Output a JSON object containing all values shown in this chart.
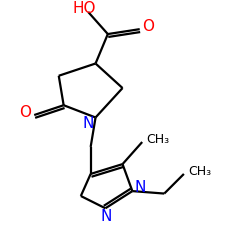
{
  "background_color": "#ffffff",
  "bond_color": "#000000",
  "n_color": "#0000ff",
  "o_color": "#ff0000",
  "font_size": 11,
  "small_font_size": 9,
  "figsize": [
    2.5,
    2.5
  ],
  "dpi": 100,
  "lw": 1.6,
  "xlim": [
    0,
    10
  ],
  "ylim": [
    0,
    10
  ]
}
